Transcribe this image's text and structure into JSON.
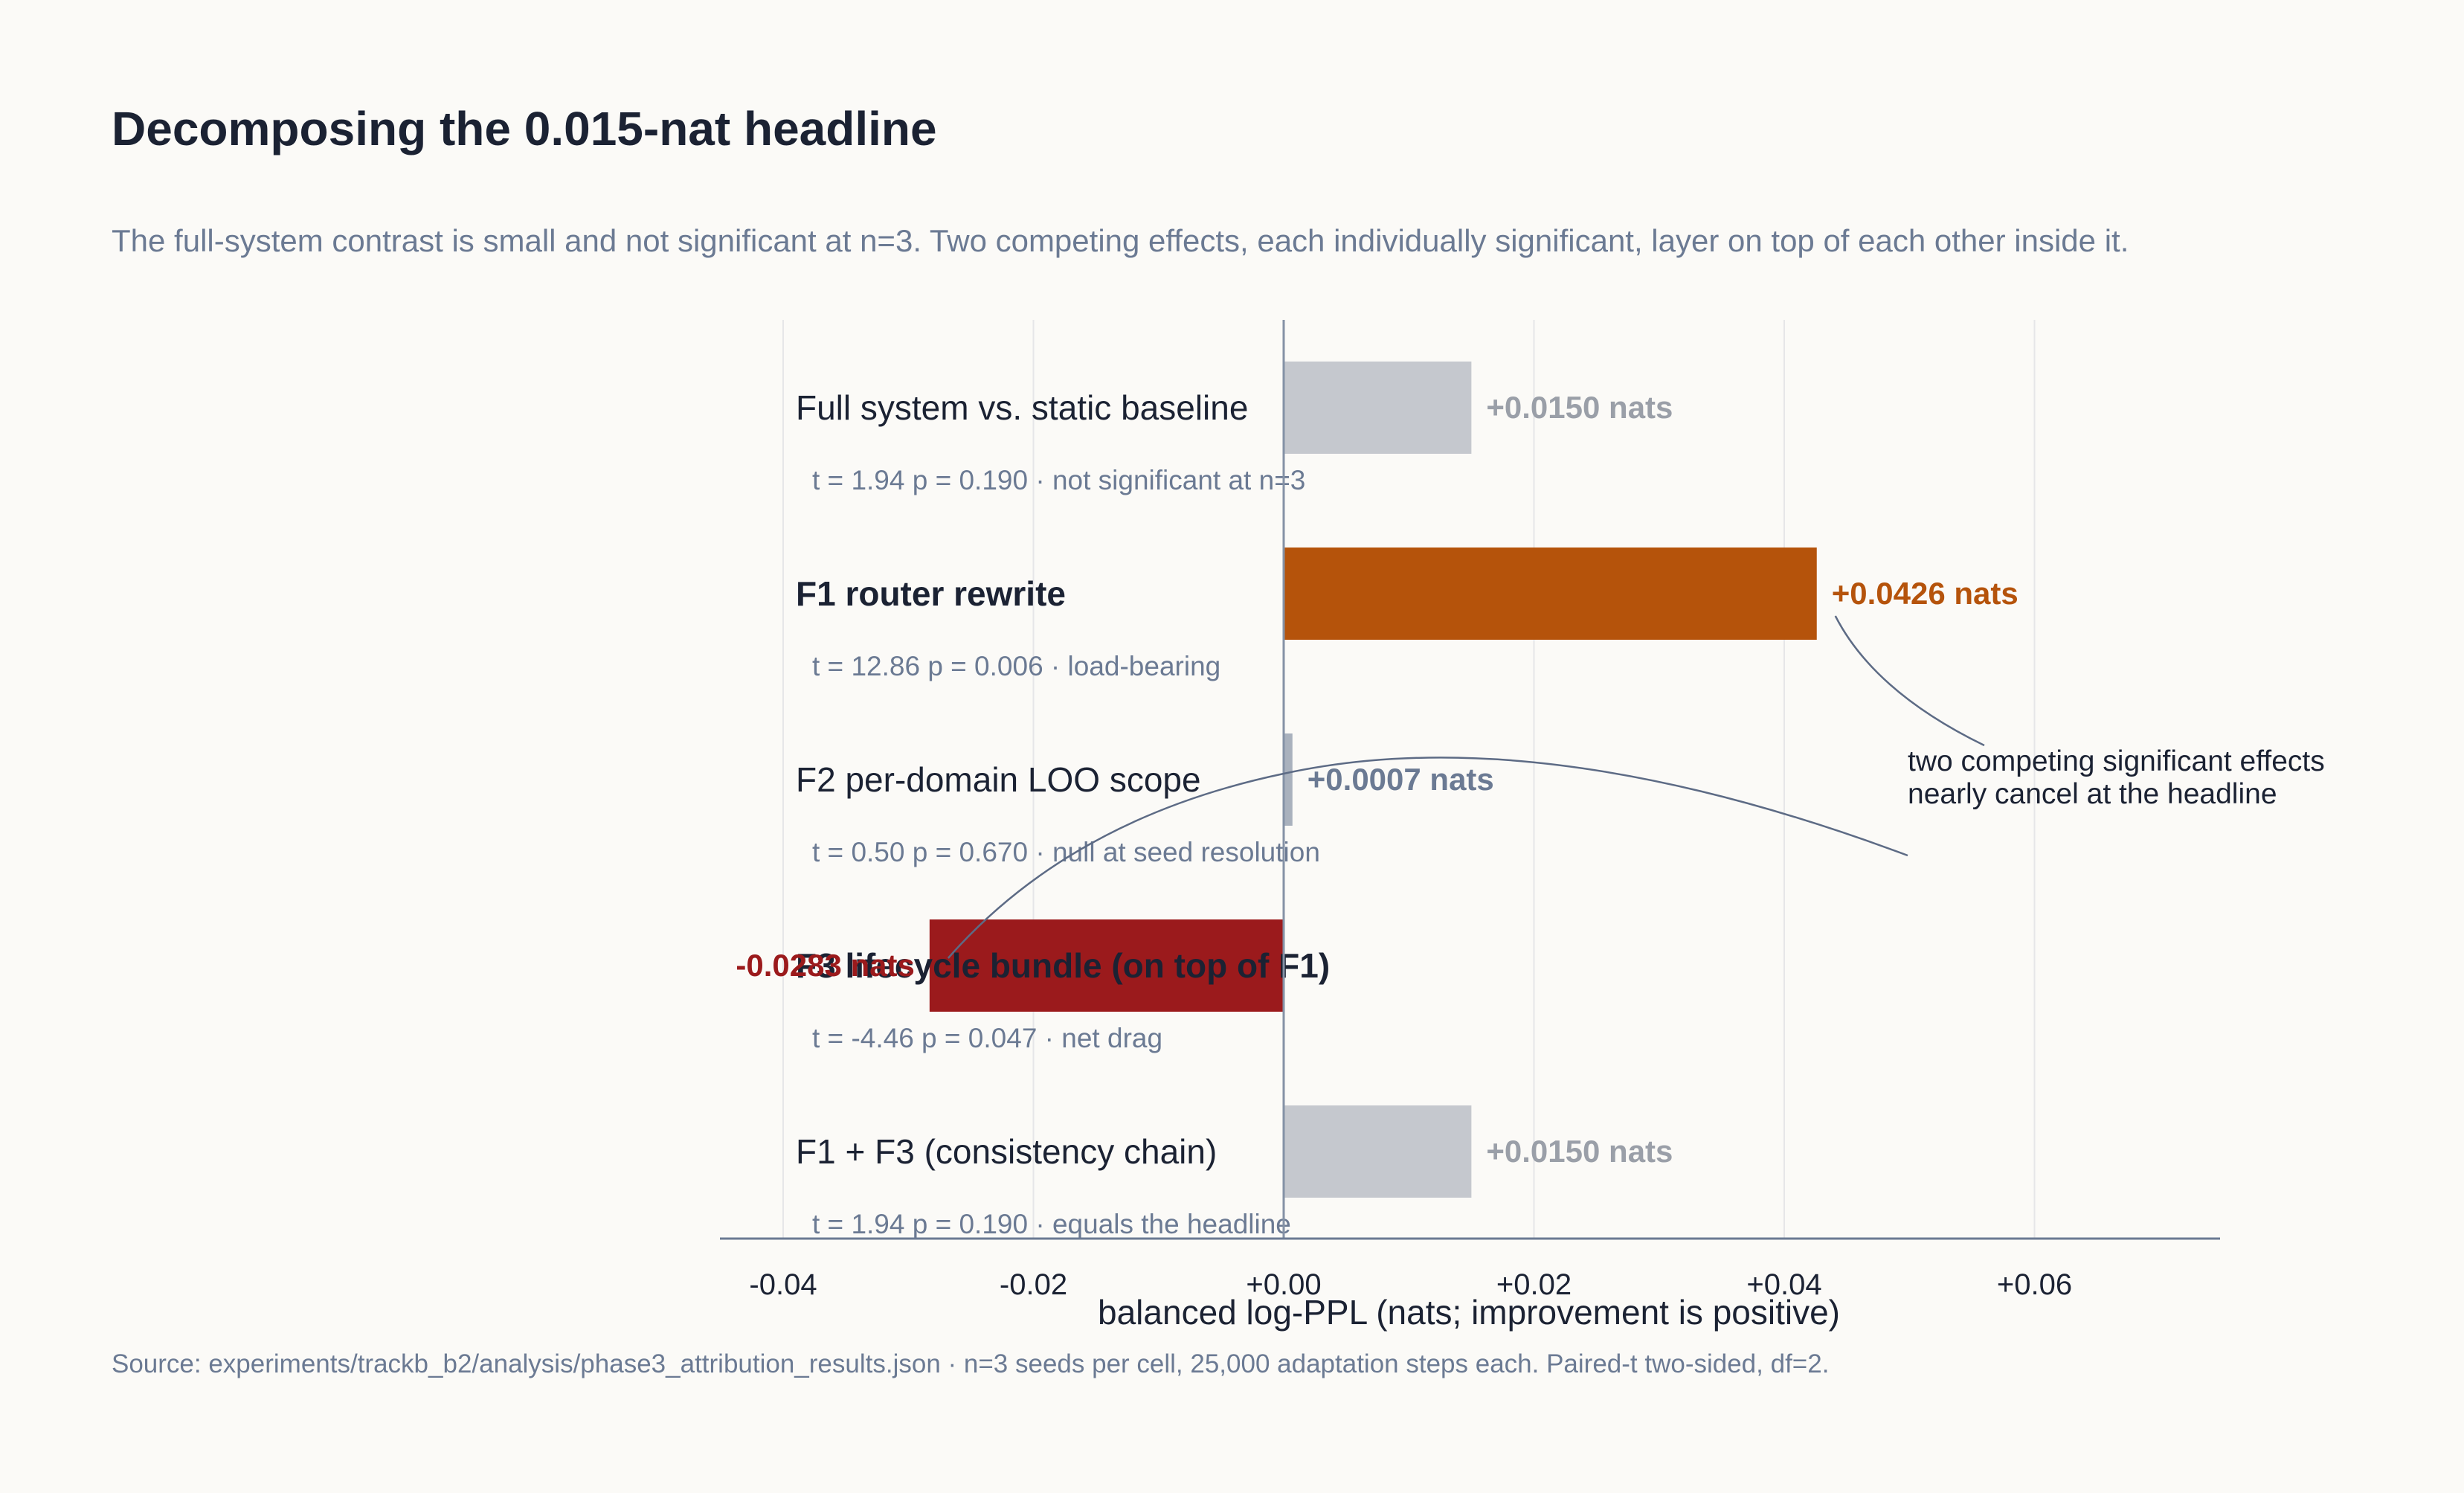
{
  "chart_data": {
    "type": "bar",
    "orientation": "horizontal",
    "title": "Decomposing the 0.015-nat headline",
    "subtitle": "The full-system contrast is small and not significant at n=3. Two competing effects, each individually significant, layer on top of each other inside it.",
    "xlabel": "balanced log-PPL  (nats; improvement is positive)",
    "xlim": [
      -0.045,
      0.075
    ],
    "xticks": [
      -0.04,
      -0.02,
      0.0,
      0.02,
      0.04,
      0.06
    ],
    "xtick_labels": [
      "-0.04",
      "-0.02",
      "+0.00",
      "+0.02",
      "+0.04",
      "+0.06"
    ],
    "grid": "vertical",
    "rows": [
      {
        "label": "Full system vs. static baseline",
        "bold": false,
        "value": 0.015,
        "value_label": "+0.0150 nats",
        "stats": "t = 1.94   p = 0.190   ·   not significant at n=3",
        "bar_color": "#c5c8ce",
        "label_color": "#9a9fa8"
      },
      {
        "label": "F1  router rewrite",
        "bold": true,
        "value": 0.0426,
        "value_label": "+0.0426 nats",
        "stats": "t = 12.86   p = 0.006   ·   load-bearing",
        "bar_color": "#b5530b",
        "label_color": "#b5530b"
      },
      {
        "label": "F2  per-domain LOO scope",
        "bold": false,
        "value": 0.0007,
        "value_label": "+0.0007 nats",
        "stats": "t = 0.50   p = 0.670   ·   null at seed resolution",
        "bar_color": "#a9b1bd",
        "label_color": "#6b7a93"
      },
      {
        "label": "F3  lifecycle bundle  (on top of F1)",
        "bold": true,
        "value": -0.0283,
        "value_label": "-0.0283 nats",
        "stats": "t = -4.46   p = 0.047   ·   net drag",
        "bar_color": "#9b1a1c",
        "label_color": "#9b1a1c"
      },
      {
        "label": "F1 + F3  (consistency chain)",
        "bold": false,
        "value": 0.015,
        "value_label": "+0.0150 nats",
        "stats": "t = 1.94   p = 0.190   ·   equals the headline",
        "bar_color": "#c5c8ce",
        "label_color": "#9a9fa8"
      }
    ],
    "annotation": {
      "lines": [
        "two competing significant effects",
        "nearly cancel at the headline"
      ],
      "points_to": [
        1,
        3
      ]
    }
  },
  "source": "Source: experiments/trackb_b2/analysis/phase3_attribution_results.json  ·  n=3 seeds per cell, 25,000 adaptation steps each. Paired-t two-sided, df=2."
}
